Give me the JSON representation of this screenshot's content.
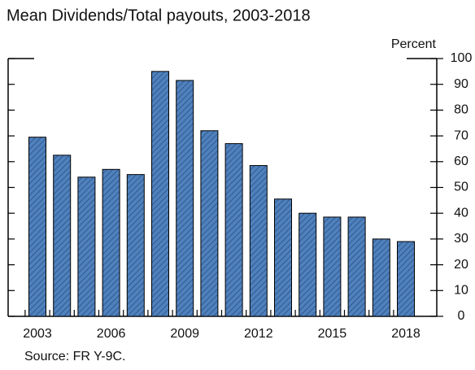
{
  "chart_data": {
    "type": "bar",
    "title": "Mean Dividends/Total payouts, 2003-2018",
    "y_axis_label": "Percent",
    "source": "Source: FR Y-9C.",
    "categories": [
      "2003",
      null,
      null,
      "2006",
      null,
      null,
      "2009",
      null,
      null,
      "2012",
      null,
      null,
      "2015",
      null,
      null,
      "2018"
    ],
    "values": [
      69.5,
      62.5,
      54,
      57,
      55,
      95,
      91.5,
      72,
      67,
      58.5,
      45.5,
      40,
      38.5,
      38.5,
      30,
      29
    ],
    "color": "#4f81bd",
    "ylim": [
      0,
      100
    ],
    "yticks": [
      0,
      10,
      20,
      30,
      40,
      50,
      60,
      70,
      80,
      90,
      100
    ]
  }
}
